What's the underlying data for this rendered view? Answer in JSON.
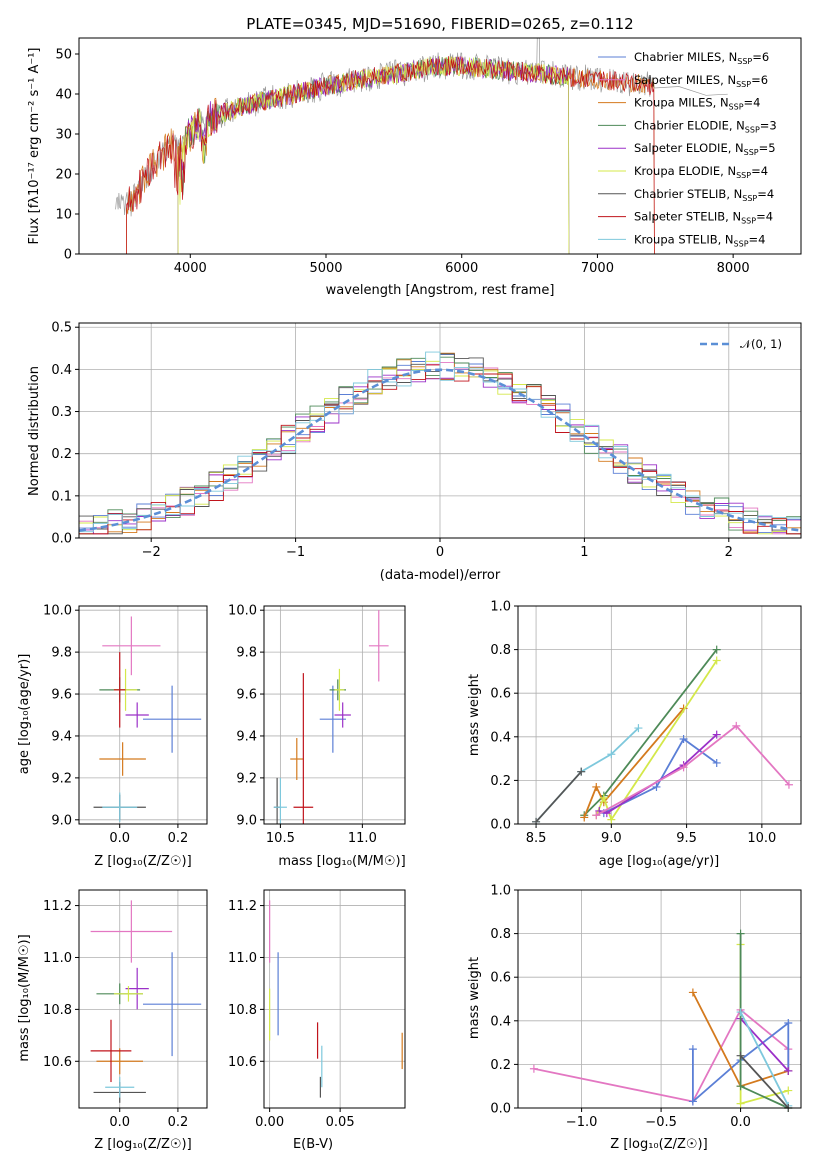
{
  "colors": {
    "chabrier_miles": "#5b7fd6",
    "salpeter_miles": "#e377c2",
    "kroupa_miles": "#d47a1e",
    "chabrier_elodie": "#4e8a58",
    "salpeter_elodie": "#9b30c8",
    "kroupa_elodie": "#d4e84a",
    "chabrier_stelib": "#555555",
    "salpeter_stelib": "#c0141c",
    "kroupa_stelib": "#7ec8dc",
    "normal_fit": "#5b8fd6"
  },
  "chart_data": [
    {
      "id": "spectrum",
      "type": "line",
      "title": "PLATE=0345, MJD=51690, FIBERID=0265, z=0.112",
      "xlabel": "wavelength [Angstrom, rest frame]",
      "ylabel": "Flux [fλ10⁻¹⁷ erg cm⁻² s⁻¹ A⁻¹]",
      "xlim": [
        3180,
        8500
      ],
      "ylim": [
        0,
        54
      ],
      "xticks": [
        "4000",
        "5000",
        "6000",
        "7000",
        "8000"
      ],
      "yticks": [
        "0",
        "10",
        "20",
        "30",
        "40",
        "50"
      ],
      "grid": false,
      "legend_position": "top-right",
      "continuum": [
        [
          3450,
          12.2
        ],
        [
          3560,
          12.5
        ],
        [
          3650,
          18
        ],
        [
          3750,
          23
        ],
        [
          3850,
          27
        ],
        [
          3950,
          28
        ],
        [
          4050,
          32
        ],
        [
          4150,
          34
        ],
        [
          4300,
          36
        ],
        [
          4500,
          38
        ],
        [
          4700,
          39.5
        ],
        [
          5000,
          42
        ],
        [
          5300,
          44
        ],
        [
          5600,
          45.5
        ],
        [
          5800,
          47
        ],
        [
          6000,
          47
        ],
        [
          6300,
          46
        ],
        [
          6600,
          45
        ],
        [
          6900,
          44
        ],
        [
          7200,
          43
        ],
        [
          7420,
          42
        ]
      ],
      "series": [
        {
          "key": "chabrier_miles",
          "name": "Chabrier MILES, N_SSP=6",
          "x_range": [
            3450,
            7420
          ]
        },
        {
          "key": "salpeter_miles",
          "name": "Salpeter MILES, N_SSP=6",
          "x_range": [
            3450,
            7420
          ]
        },
        {
          "key": "kroupa_miles",
          "name": "Kroupa MILES, N_SSP=4",
          "x_range": [
            3530,
            7420
          ]
        },
        {
          "key": "chabrier_elodie",
          "name": "Chabrier ELODIE, N_SSP=3",
          "x_range": [
            3910,
            6790
          ]
        },
        {
          "key": "salpeter_elodie",
          "name": "Salpeter ELODIE, N_SSP=5",
          "x_range": [
            3910,
            6790
          ]
        },
        {
          "key": "kroupa_elodie",
          "name": "Kroupa ELODIE, N_SSP=4",
          "x_range": [
            3910,
            6790
          ]
        },
        {
          "key": "chabrier_stelib",
          "name": "Chabrier STELIB, N_SSP=4",
          "x_range": [
            3450,
            7420
          ]
        },
        {
          "key": "salpeter_stelib",
          "name": "Salpeter STELIB, N_SSP=4",
          "x_range": [
            3530,
            7420
          ]
        },
        {
          "key": "kroupa_stelib",
          "name": "Kroupa STELIB, N_SSP=4",
          "x_range": [
            3450,
            7420
          ]
        }
      ],
      "gray_data_extension": [
        [
          7420,
          42
        ],
        [
          7600,
          41.5
        ],
        [
          7800,
          40
        ],
        [
          7960,
          39.5
        ]
      ]
    },
    {
      "id": "residuals",
      "type": "line",
      "xlabel": "(data-model)/error",
      "ylabel": "Normed distribution",
      "xlim": [
        -2.5,
        2.5
      ],
      "ylim": [
        0,
        0.51
      ],
      "xticks": [
        "−2",
        "−1",
        "0",
        "1",
        "2"
      ],
      "yticks": [
        "0.0",
        "0.1",
        "0.2",
        "0.3",
        "0.4",
        "0.5"
      ],
      "grid": true,
      "legend_position": "top-right",
      "fit_label": "𝒩(0, 1)",
      "bin_width": 0.1
    },
    {
      "id": "z_age",
      "type": "scatter",
      "xlabel": "Z [log₁₀(Z/Z☉)]",
      "ylabel": "age  [log₁₀(age/yr)]",
      "xlim": [
        -0.14,
        0.3
      ],
      "ylim": [
        8.98,
        10.02
      ],
      "xticks": [
        "0.0",
        "0.2"
      ],
      "yticks": [
        "9.0",
        "9.2",
        "9.4",
        "9.6",
        "9.8",
        "10.0"
      ],
      "grid": true,
      "points": [
        {
          "key": "chabrier_miles",
          "x": 0.18,
          "y": 9.48,
          "xerr": 0.1,
          "yerr": 0.16
        },
        {
          "key": "salpeter_miles",
          "x": 0.04,
          "y": 9.83,
          "xerr": 0.1,
          "yerr": 0.14
        },
        {
          "key": "kroupa_miles",
          "x": 0.01,
          "y": 9.29,
          "xerr": 0.08,
          "yerr": 0.08
        },
        {
          "key": "chabrier_elodie",
          "x": 0.0,
          "y": 9.62,
          "xerr": 0.07,
          "yerr": 0.06
        },
        {
          "key": "salpeter_elodie",
          "x": 0.06,
          "y": 9.5,
          "xerr": 0.04,
          "yerr": 0.06
        },
        {
          "key": "kroupa_elodie",
          "x": 0.02,
          "y": 9.62,
          "xerr": 0.04,
          "yerr": 0.1
        },
        {
          "key": "chabrier_stelib",
          "x": 0.0,
          "y": 9.06,
          "xerr": 0.09,
          "yerr": 0.06
        },
        {
          "key": "salpeter_stelib",
          "x": 0.0,
          "y": 9.62,
          "xerr": 0.02,
          "yerr": 0.18
        },
        {
          "key": "kroupa_stelib",
          "x": 0.0,
          "y": 9.06,
          "xerr": 0.06,
          "yerr": 0.07
        }
      ]
    },
    {
      "id": "mass_age",
      "type": "scatter",
      "xlabel": "mass [log₁₀(M/M☉)]",
      "ylabel": "",
      "xlim": [
        10.4,
        11.26
      ],
      "ylim": [
        8.98,
        10.02
      ],
      "xticks": [
        "10.5",
        "11.0"
      ],
      "yticks": [
        "9.0",
        "9.2",
        "9.4",
        "9.6",
        "9.8",
        "10.0"
      ],
      "grid": true,
      "points": [
        {
          "key": "chabrier_miles",
          "x": 10.82,
          "y": 9.48,
          "xerr": 0.08,
          "yerr": 0.16
        },
        {
          "key": "salpeter_miles",
          "x": 11.1,
          "y": 9.83,
          "xerr": 0.06,
          "yerr": 0.17
        },
        {
          "key": "kroupa_miles",
          "x": 10.6,
          "y": 9.29,
          "xerr": 0.04,
          "yerr": 0.1
        },
        {
          "key": "chabrier_elodie",
          "x": 10.85,
          "y": 9.62,
          "xerr": 0.05,
          "yerr": 0.05
        },
        {
          "key": "salpeter_elodie",
          "x": 10.88,
          "y": 9.5,
          "xerr": 0.05,
          "yerr": 0.06
        },
        {
          "key": "kroupa_elodie",
          "x": 10.86,
          "y": 9.62,
          "xerr": 0.03,
          "yerr": 0.1
        },
        {
          "key": "chabrier_stelib",
          "x": 10.48,
          "y": 9.06,
          "xerr": 0.02,
          "yerr": 0.14
        },
        {
          "key": "salpeter_stelib",
          "x": 10.64,
          "y": 9.06,
          "xerr": 0.06,
          "yerr": 0.64
        },
        {
          "key": "kroupa_stelib",
          "x": 10.5,
          "y": 9.06,
          "xerr": 0.04,
          "yerr": 0.14
        }
      ]
    },
    {
      "id": "age_weight",
      "type": "line",
      "xlabel": "age  [log₁₀(age/yr)]",
      "ylabel": "mass weight",
      "xlim": [
        8.38,
        10.26
      ],
      "ylim": [
        0,
        1
      ],
      "xticks": [
        "8.5",
        "9.0",
        "9.5",
        "10.0"
      ],
      "yticks": [
        "0.0",
        "0.2",
        "0.4",
        "0.6",
        "0.8",
        "1.0"
      ],
      "grid": true,
      "series": [
        {
          "key": "kroupa_stelib",
          "x": [
            8.5,
            8.8,
            9.0,
            9.18
          ],
          "y": [
            0.01,
            0.24,
            0.32,
            0.44
          ]
        },
        {
          "key": "chabrier_elodie",
          "x": [
            8.82,
            8.95,
            9.7
          ],
          "y": [
            0.04,
            0.13,
            0.8
          ]
        },
        {
          "key": "kroupa_miles",
          "x": [
            8.82,
            8.9,
            8.95,
            9.48
          ],
          "y": [
            0.03,
            0.17,
            0.1,
            0.53
          ]
        },
        {
          "key": "kroupa_elodie",
          "x": [
            8.9,
            8.95,
            9.0,
            9.7
          ],
          "y": [
            0.04,
            0.12,
            0.02,
            0.75
          ]
        },
        {
          "key": "chabrier_miles",
          "x": [
            8.95,
            9.3,
            9.48,
            9.7
          ],
          "y": [
            0.05,
            0.17,
            0.39,
            0.28
          ]
        },
        {
          "key": "salpeter_elodie",
          "x": [
            8.92,
            8.97,
            9.48,
            9.7
          ],
          "y": [
            0.06,
            0.05,
            0.27,
            0.41
          ]
        },
        {
          "key": "salpeter_miles",
          "x": [
            8.9,
            9.48,
            9.83,
            10.18
          ],
          "y": [
            0.04,
            0.26,
            0.45,
            0.18
          ]
        },
        {
          "key": "chabrier_stelib",
          "x": [
            8.5,
            8.8
          ],
          "y": [
            0.01,
            0.24
          ]
        }
      ]
    },
    {
      "id": "z_mass",
      "type": "scatter",
      "xlabel": "Z [log₁₀(Z/Z☉)]",
      "ylabel": "mass [log₁₀(M/M☉)]",
      "xlim": [
        -0.14,
        0.3
      ],
      "ylim": [
        10.42,
        11.26
      ],
      "xticks": [
        "0.0",
        "0.2"
      ],
      "yticks": [
        "10.6",
        "10.8",
        "11.0",
        "11.2"
      ],
      "grid": true,
      "points": [
        {
          "key": "chabrier_miles",
          "x": 0.18,
          "y": 10.82,
          "xerr": 0.1,
          "yerr": 0.2
        },
        {
          "key": "salpeter_miles",
          "x": 0.04,
          "y": 11.1,
          "xerr": 0.14,
          "yerr": 0.12
        },
        {
          "key": "kroupa_miles",
          "x": 0.0,
          "y": 10.6,
          "xerr": 0.08,
          "yerr": 0.05
        },
        {
          "key": "chabrier_elodie",
          "x": 0.0,
          "y": 10.86,
          "xerr": 0.08,
          "yerr": 0.04
        },
        {
          "key": "salpeter_elodie",
          "x": 0.06,
          "y": 10.88,
          "xerr": 0.04,
          "yerr": 0.08
        },
        {
          "key": "kroupa_elodie",
          "x": 0.03,
          "y": 10.86,
          "xerr": 0.05,
          "yerr": 0.03
        },
        {
          "key": "chabrier_stelib",
          "x": 0.0,
          "y": 10.48,
          "xerr": 0.09,
          "yerr": 0.04
        },
        {
          "key": "salpeter_stelib",
          "x": -0.03,
          "y": 10.64,
          "xerr": 0.07,
          "yerr": 0.12
        },
        {
          "key": "kroupa_stelib",
          "x": 0.0,
          "y": 10.5,
          "xerr": 0.05,
          "yerr": 0.04
        }
      ]
    },
    {
      "id": "ebv_mass",
      "type": "scatter",
      "xlabel": "E(B-V)",
      "ylabel": "",
      "xlim": [
        -0.004,
        0.096
      ],
      "ylim": [
        10.42,
        11.26
      ],
      "xticks": [
        "0.00",
        "0.05"
      ],
      "yticks": [
        "10.6",
        "10.8",
        "11.0",
        "11.2"
      ],
      "grid": true,
      "points": [
        {
          "key": "salpeter_miles",
          "x": 0.0,
          "y": 11.1,
          "xerr": 0,
          "yerr": 0.12
        },
        {
          "key": "chabrier_miles",
          "x": 0.006,
          "y": 10.86,
          "xerr": 0,
          "yerr": 0.16
        },
        {
          "key": "kroupa_elodie",
          "x": 0.0,
          "y": 10.78,
          "xerr": 0,
          "yerr": 0.1
        },
        {
          "key": "salpeter_stelib",
          "x": 0.034,
          "y": 10.68,
          "xerr": 0,
          "yerr": 0.07
        },
        {
          "key": "kroupa_stelib",
          "x": 0.037,
          "y": 10.58,
          "xerr": 0,
          "yerr": 0.08
        },
        {
          "key": "chabrier_stelib",
          "x": 0.036,
          "y": 10.5,
          "xerr": 0,
          "yerr": 0.04
        },
        {
          "key": "kroupa_miles",
          "x": 0.094,
          "y": 10.64,
          "xerr": 0,
          "yerr": 0.07
        }
      ]
    },
    {
      "id": "z_weight",
      "type": "line",
      "xlabel": "Z [log₁₀(Z/Z☉)]",
      "ylabel": "mass weight",
      "xlim": [
        -1.4,
        0.38
      ],
      "ylim": [
        0,
        1
      ],
      "xticks": [
        "−1.0",
        "−0.5",
        "0.0"
      ],
      "yticks": [
        "0.0",
        "0.2",
        "0.4",
        "0.6",
        "0.8",
        "1.0"
      ],
      "grid": true,
      "series": [
        {
          "key": "salpeter_miles",
          "x": [
            -1.3,
            -0.3,
            0.0,
            0.3,
            0.3
          ],
          "y": [
            0.18,
            0.03,
            0.45,
            0.27,
            0.17
          ]
        },
        {
          "key": "chabrier_miles",
          "x": [
            -0.3,
            -0.3,
            0.0,
            0.3,
            0.3
          ],
          "y": [
            0.27,
            0.03,
            0.22,
            0.39,
            0.17
          ]
        },
        {
          "key": "kroupa_miles",
          "x": [
            -0.3,
            0.0,
            0.3
          ],
          "y": [
            0.53,
            0.1,
            0.17
          ]
        },
        {
          "key": "salpeter_elodie",
          "x": [
            0.0,
            0.3
          ],
          "y": [
            0.41,
            0.17
          ]
        },
        {
          "key": "kroupa_elodie",
          "x": [
            0.0,
            0.0,
            0.3
          ],
          "y": [
            0.75,
            0.02,
            0.08
          ]
        },
        {
          "key": "chabrier_elodie",
          "x": [
            0.0,
            0.0,
            0.3
          ],
          "y": [
            0.8,
            0.1,
            0.0
          ]
        },
        {
          "key": "kroupa_stelib",
          "x": [
            0.0,
            0.3
          ],
          "y": [
            0.44,
            0.01
          ]
        },
        {
          "key": "chabrier_stelib",
          "x": [
            0.0,
            0.3
          ],
          "y": [
            0.24,
            0.0
          ]
        }
      ]
    }
  ]
}
